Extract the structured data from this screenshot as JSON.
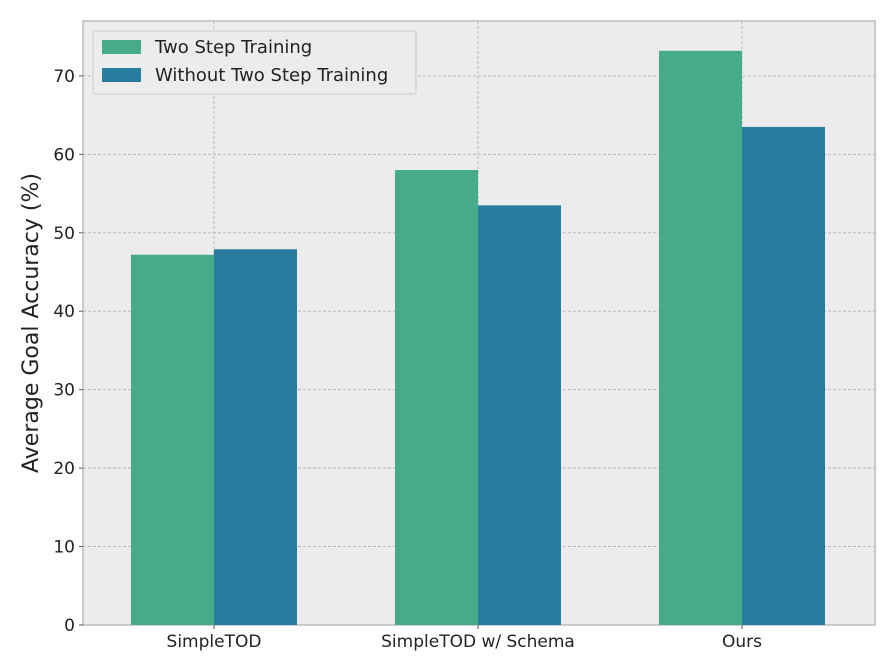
{
  "chart_data": {
    "type": "bar",
    "title": "",
    "xlabel": "",
    "ylabel": "Average Goal Accuracy (%)",
    "categories": [
      "SimpleTOD",
      "SimpleTOD w/ Schema",
      "Ours"
    ],
    "series": [
      {
        "name": "Two Step Training",
        "values": [
          47.2,
          58.0,
          73.2
        ],
        "color": "#45ab8b"
      },
      {
        "name": "Without Two Step Training",
        "values": [
          47.9,
          53.5,
          63.5
        ],
        "color": "#277c9f"
      }
    ],
    "ylim": [
      0,
      77
    ],
    "yticks": [
      0,
      10,
      20,
      30,
      40,
      50,
      60,
      70
    ],
    "grid": true,
    "legend_position": "top-left",
    "background_color": "#ececec"
  }
}
